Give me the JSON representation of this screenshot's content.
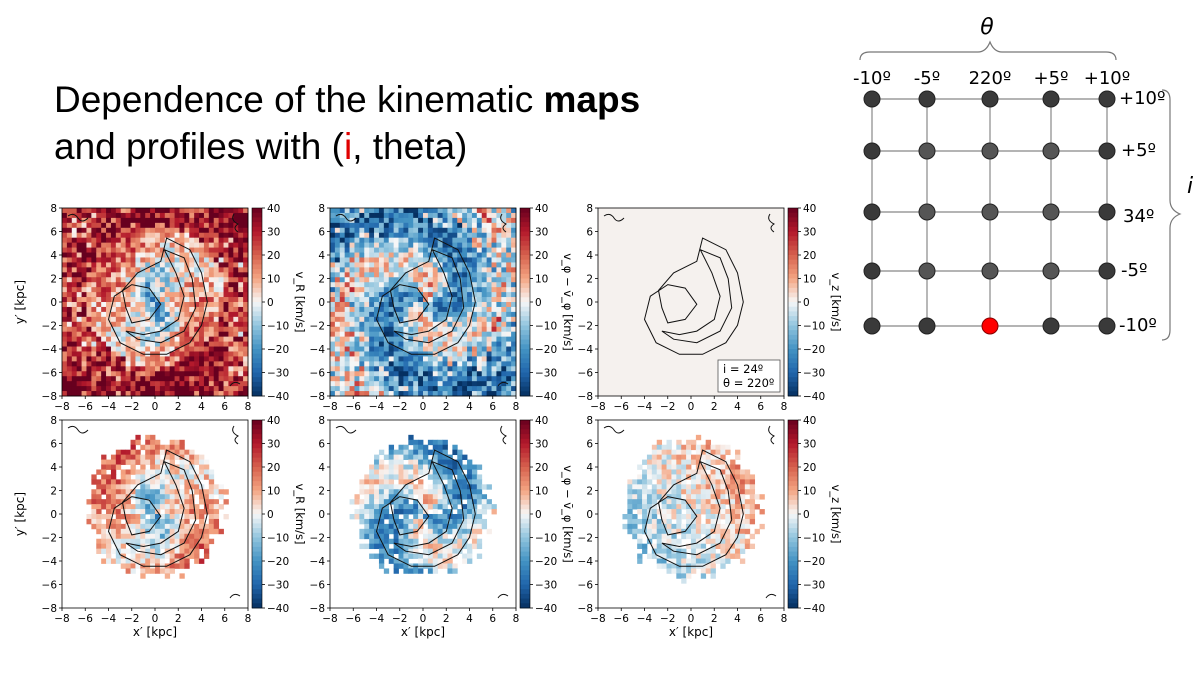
{
  "slide": {
    "title_line1_prefix": "Dependence of the kinematic ",
    "title_line1_bold": "maps",
    "title_line2_prefix": "and profiles with (",
    "title_line2_red": "i",
    "title_line2_suffix": ", theta)"
  },
  "maps": {
    "x_ticks": [
      "−8",
      "−6",
      "−4",
      "−2",
      "0",
      "2",
      "4",
      "6",
      "8"
    ],
    "y_ticks": [
      "8",
      "6",
      "4",
      "2",
      "0",
      "−2",
      "−4",
      "−6",
      "−8"
    ],
    "colorbar_ticks": [
      "40",
      "30",
      "20",
      "10",
      "0",
      "−10",
      "−20",
      "−30",
      "−40"
    ],
    "x_label": "x′ [kpc]",
    "y_label": "y′ [kpc]",
    "cbar_labels": [
      "v_R [km/s]",
      "v_φ − v̄_φ [km/s]",
      "v_z [km/s]"
    ],
    "annotation_line1": "i = 24º",
    "annotation_line2": "θ = 220º",
    "colors": {
      "red": "#b2182b",
      "blue": "#2166ac",
      "white": "#f7f7f7",
      "contour": "#111111"
    }
  },
  "grid": {
    "axis_symbol_theta": "θ",
    "axis_symbol_i": "i",
    "theta_labels": [
      "-10º",
      "-5º",
      "220º",
      "+5º",
      "+10º"
    ],
    "i_labels": [
      "+10º",
      "+5º",
      "34º",
      "-5º",
      "-10º"
    ],
    "highlight": {
      "row": 4,
      "col": 2,
      "color": "#ff0000"
    },
    "node_color": "#3a3a3a",
    "line_color": "#888888"
  }
}
